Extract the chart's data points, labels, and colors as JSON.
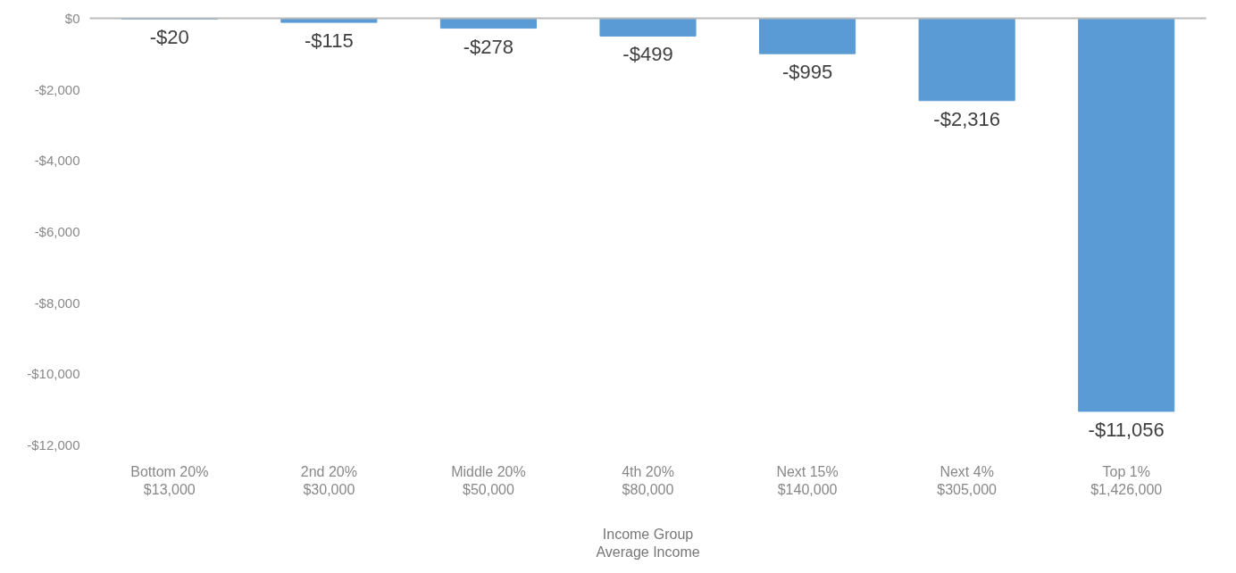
{
  "chart_data": {
    "type": "bar",
    "xlabel": "Income Group\nAverage Income",
    "categories": [
      "Bottom 20%\n$13,000",
      "2nd 20%\n$30,000",
      "Middle 20%\n$50,000",
      "4th 20%\n$80,000",
      "Next 15%\n$140,000",
      "Next 4%\n$305,000",
      "Top 1%\n$1,426,000"
    ],
    "values": [
      -20,
      -115,
      -278,
      -499,
      -995,
      -2316,
      -11056
    ],
    "value_labels": [
      "-$20",
      "-$115",
      "-$278",
      "-$499",
      "-$995",
      "-$2,316",
      "-$11,056"
    ],
    "color": "#5b9bd5",
    "ylim": [
      -12000,
      0
    ],
    "yticks": [
      {
        "value": 0,
        "label": "$0"
      },
      {
        "value": -2000,
        "label": "-$2,000"
      },
      {
        "value": -4000,
        "label": "-$4,000"
      },
      {
        "value": -6000,
        "label": "-$6,000"
      },
      {
        "value": -8000,
        "label": "-$8,000"
      },
      {
        "value": -10000,
        "label": "-$10,000"
      },
      {
        "value": -12000,
        "label": "-$12,000"
      }
    ],
    "grid": false
  }
}
